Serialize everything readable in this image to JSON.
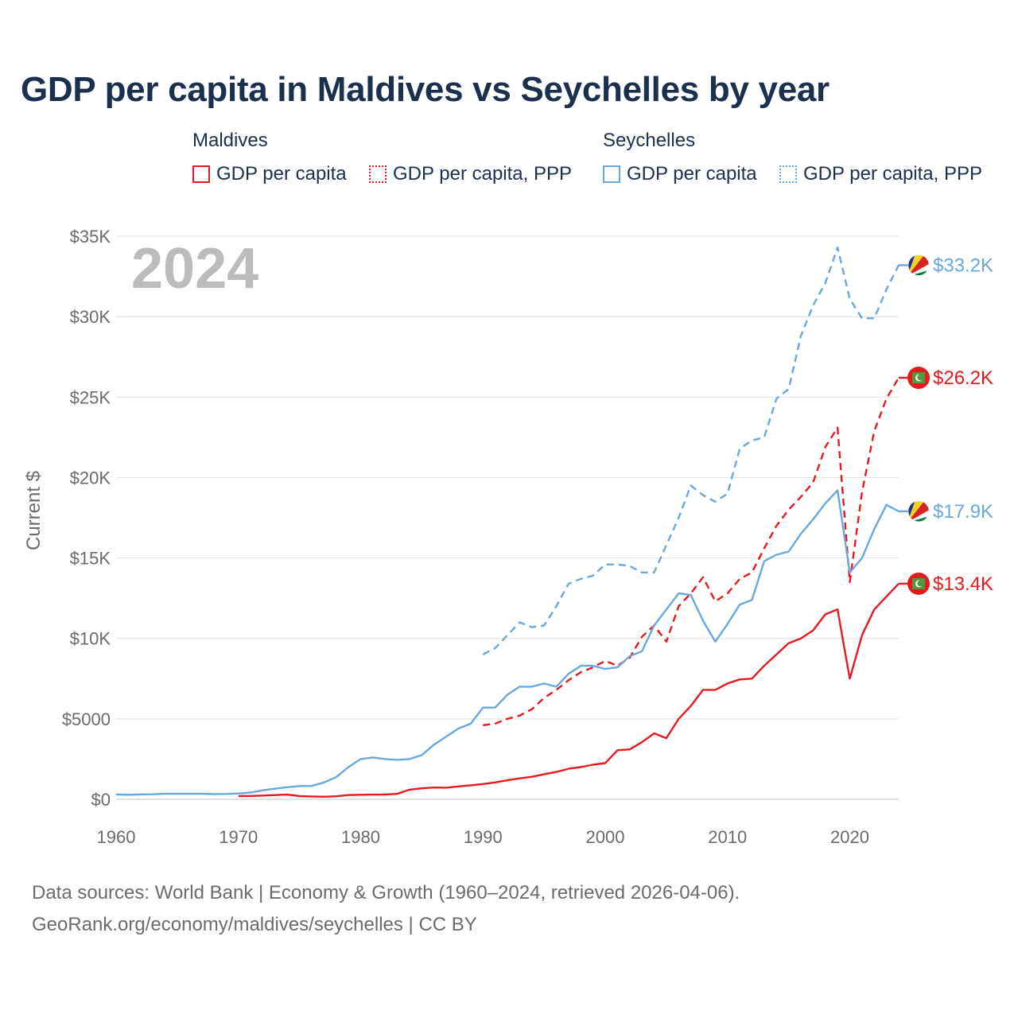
{
  "title": "GDP per capita in Maldives vs Seychelles by year",
  "legend": {
    "groups": [
      {
        "name": "Maldives",
        "items": [
          {
            "label": "GDP per capita",
            "style": "solid",
            "color": "#e8191e"
          },
          {
            "label": "GDP per capita, PPP",
            "style": "dotted",
            "color": "#e8191e"
          }
        ]
      },
      {
        "name": "Seychelles",
        "items": [
          {
            "label": "GDP per capita",
            "style": "solid",
            "color": "#6aa7dd"
          },
          {
            "label": "GDP per capita, PPP",
            "style": "dotted",
            "color": "#6aa7dd"
          }
        ]
      }
    ]
  },
  "year_overlay": "2024",
  "footer": {
    "line1": "Data sources: World Bank | Economy & Growth (1960–2024, retrieved 2026-04-06).",
    "line2": "GeoRank.org/economy/maldives/seychelles | CC BY"
  },
  "chart_data": {
    "type": "line",
    "title": "GDP per capita in Maldives vs Seychelles by year",
    "xlabel": "",
    "ylabel": "Current $",
    "xlim": [
      1960,
      2024
    ],
    "ylim": [
      0,
      35000
    ],
    "grid": true,
    "x_ticks": [
      1960,
      1970,
      1980,
      1990,
      2000,
      2010,
      2020
    ],
    "x_tick_labels": [
      "1960",
      "1970",
      "1980",
      "1990",
      "2000",
      "2010",
      "2020"
    ],
    "y_ticks": [
      0,
      5000,
      10000,
      15000,
      20000,
      25000,
      30000,
      35000
    ],
    "y_tick_labels": [
      "$0",
      "$5000",
      "$10K",
      "$15K",
      "$20K",
      "$25K",
      "$30K",
      "$35K"
    ],
    "series": [
      {
        "name": "Seychelles GDP per capita, PPP",
        "country": "Seychelles",
        "color": "#6aa7dd",
        "dash": true,
        "end_label": "$33.2K",
        "flag": "seychelles",
        "x": [
          1990,
          1991,
          1992,
          1993,
          1994,
          1995,
          1996,
          1997,
          1998,
          1999,
          2000,
          2001,
          2002,
          2003,
          2004,
          2005,
          2006,
          2007,
          2008,
          2009,
          2010,
          2011,
          2012,
          2013,
          2014,
          2015,
          2016,
          2017,
          2018,
          2019,
          2020,
          2021,
          2022,
          2023,
          2024
        ],
        "values": [
          9000,
          9400,
          10200,
          11000,
          10700,
          10800,
          12000,
          13400,
          13700,
          13900,
          14600,
          14600,
          14500,
          14100,
          14100,
          15800,
          17500,
          19500,
          18900,
          18500,
          19000,
          21800,
          22300,
          22500,
          24900,
          25500,
          28800,
          30700,
          32100,
          34300,
          31100,
          29900,
          29900,
          31700,
          33200
        ]
      },
      {
        "name": "Maldives GDP per capita, PPP",
        "country": "Maldives",
        "color": "#e8191e",
        "dash": true,
        "end_label": "$26.2K",
        "flag": "maldives",
        "x": [
          1990,
          1991,
          1992,
          1993,
          1994,
          1995,
          1996,
          1997,
          1998,
          1999,
          2000,
          2001,
          2002,
          2003,
          2004,
          2005,
          2006,
          2007,
          2008,
          2009,
          2010,
          2011,
          2012,
          2013,
          2014,
          2015,
          2016,
          2017,
          2018,
          2019,
          2020,
          2021,
          2022,
          2023,
          2024
        ],
        "values": [
          4600,
          4700,
          5000,
          5200,
          5600,
          6300,
          6800,
          7400,
          7900,
          8200,
          8600,
          8300,
          8800,
          10100,
          10800,
          9800,
          12000,
          12800,
          13800,
          12300,
          12800,
          13700,
          14100,
          15600,
          17000,
          18000,
          18800,
          19700,
          21900,
          23100,
          13500,
          19100,
          22900,
          24900,
          26200
        ]
      },
      {
        "name": "Seychelles GDP per capita",
        "country": "Seychelles",
        "color": "#6aa7dd",
        "dash": false,
        "end_label": "$17.9K",
        "flag": "seychelles",
        "x": [
          1960,
          1961,
          1962,
          1963,
          1964,
          1965,
          1966,
          1967,
          1968,
          1969,
          1970,
          1971,
          1972,
          1973,
          1974,
          1975,
          1976,
          1977,
          1978,
          1979,
          1980,
          1981,
          1982,
          1983,
          1984,
          1985,
          1986,
          1987,
          1988,
          1989,
          1990,
          1991,
          1992,
          1993,
          1994,
          1995,
          1996,
          1997,
          1998,
          1999,
          2000,
          2001,
          2002,
          2003,
          2004,
          2005,
          2006,
          2007,
          2008,
          2009,
          2010,
          2011,
          2012,
          2013,
          2014,
          2015,
          2016,
          2017,
          2018,
          2019,
          2020,
          2021,
          2022,
          2023,
          2024
        ],
        "values": [
          300,
          280,
          300,
          310,
          340,
          340,
          340,
          340,
          320,
          330,
          360,
          420,
          560,
          660,
          750,
          820,
          830,
          1050,
          1380,
          2000,
          2500,
          2600,
          2500,
          2450,
          2500,
          2750,
          3400,
          3900,
          4400,
          4700,
          5700,
          5700,
          6500,
          7000,
          7000,
          7200,
          7000,
          7800,
          8300,
          8300,
          8100,
          8200,
          8900,
          9200,
          10800,
          11800,
          12800,
          12700,
          11100,
          9800,
          10900,
          12100,
          12400,
          14800,
          15200,
          15400,
          16500,
          17400,
          18400,
          19200,
          14100,
          15000,
          16800,
          18300,
          17900
        ]
      },
      {
        "name": "Maldives GDP per capita",
        "country": "Maldives",
        "color": "#e8191e",
        "dash": false,
        "end_label": "$13.4K",
        "flag": "maldives",
        "x": [
          1970,
          1971,
          1972,
          1973,
          1974,
          1975,
          1976,
          1977,
          1978,
          1979,
          1980,
          1981,
          1982,
          1983,
          1984,
          1985,
          1986,
          1987,
          1988,
          1989,
          1990,
          1991,
          1992,
          1993,
          1994,
          1995,
          1996,
          1997,
          1998,
          1999,
          2000,
          2001,
          2002,
          2003,
          2004,
          2005,
          2006,
          2007,
          2008,
          2009,
          2010,
          2011,
          2012,
          2013,
          2014,
          2015,
          2016,
          2017,
          2018,
          2019,
          2020,
          2021,
          2022,
          2023,
          2024
        ],
        "values": [
          200,
          210,
          230,
          260,
          290,
          200,
          180,
          160,
          190,
          260,
          280,
          290,
          290,
          340,
          600,
          680,
          730,
          720,
          800,
          870,
          950,
          1050,
          1180,
          1300,
          1400,
          1550,
          1700,
          1900,
          2000,
          2150,
          2250,
          3050,
          3100,
          3550,
          4100,
          3800,
          5000,
          5800,
          6800,
          6800,
          7200,
          7450,
          7500,
          8300,
          9000,
          9700,
          10000,
          10500,
          11500,
          11800,
          7500,
          10200,
          11800,
          12600,
          13400
        ]
      }
    ]
  }
}
